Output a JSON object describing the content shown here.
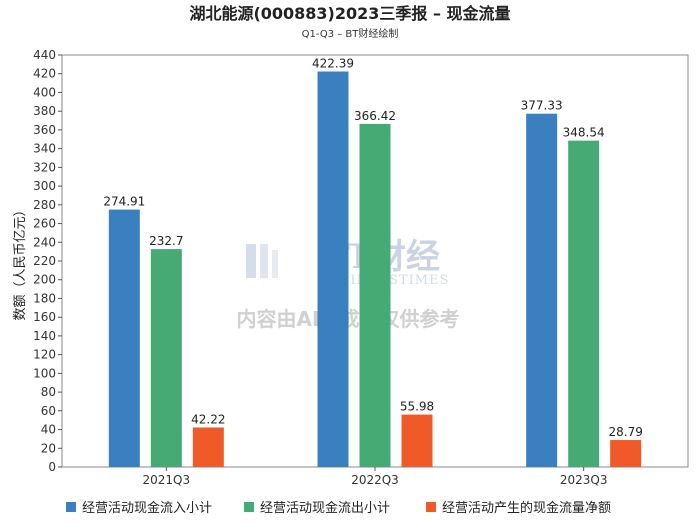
{
  "chart_data": {
    "type": "bar",
    "title": "湖北能源(000883)2023三季报 – 现金流量",
    "subtitle": "Q1-Q3 – BT财经绘制",
    "ylabel": "数额（人民币亿元）",
    "xlabel": "",
    "ylim": [
      0,
      440
    ],
    "ytick_step": 20,
    "categories": [
      "2021Q3",
      "2022Q3",
      "2023Q3"
    ],
    "series": [
      {
        "name": "经营活动现金流入小计",
        "color": "#3a80c0",
        "values": [
          274.91,
          422.39,
          377.33
        ],
        "labels": [
          "274.91",
          "422.39",
          "377.33"
        ]
      },
      {
        "name": "经营活动现金流出小计",
        "color": "#45aa74",
        "values": [
          232.7,
          366.42,
          348.54
        ],
        "labels": [
          "232.7",
          "366.42",
          "348.54"
        ]
      },
      {
        "name": "经营活动产生的现金流量净额",
        "color": "#f05a28",
        "values": [
          42.22,
          55.98,
          28.79
        ],
        "labels": [
          "42.22",
          "55.98",
          "28.79"
        ]
      }
    ],
    "legend_position": "bottom",
    "grid": false
  },
  "watermark": {
    "brand": "BT财经",
    "brand_en": "BUSINESSTIMES",
    "notice": "内容由AI生成，仅供参考"
  }
}
